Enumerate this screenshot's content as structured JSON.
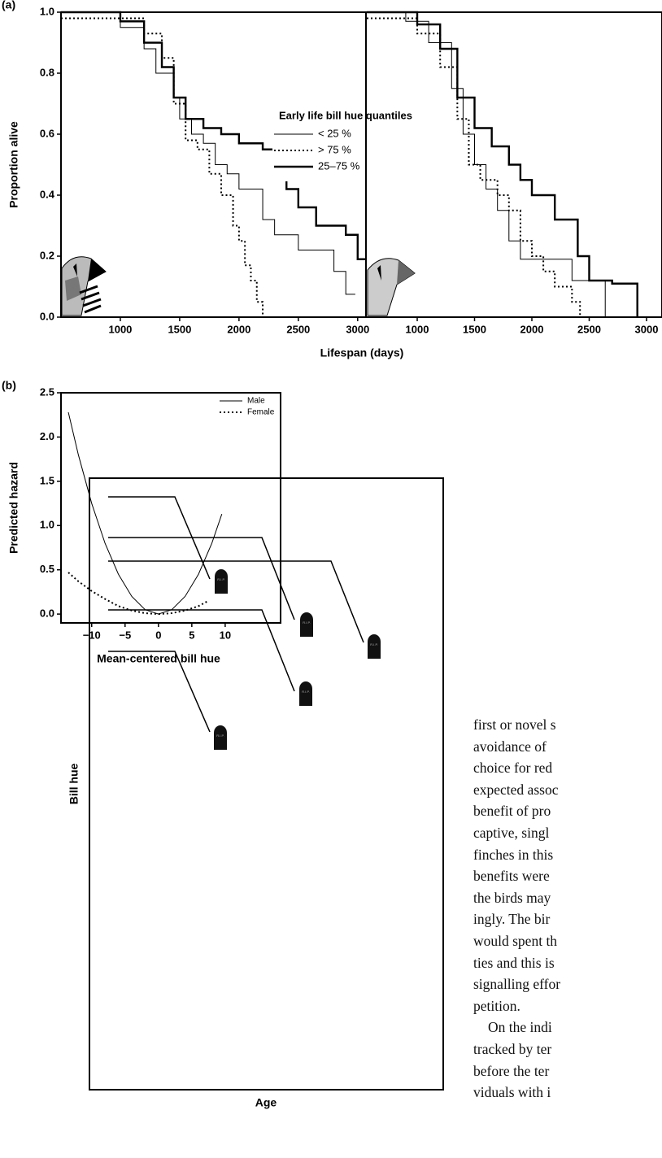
{
  "chart_data": [
    {
      "type": "line",
      "step": true,
      "label": "(a)",
      "ylabel": "Proportion alive",
      "xlabel": "Lifespan (days)",
      "legend_title": "Early life bill hue quantiles",
      "xlim": [
        500,
        3070
      ],
      "ylim": [
        0,
        1
      ],
      "xticks": [
        1000,
        1500,
        2000,
        2500,
        3000
      ],
      "yticks": [
        {
          "value": 0,
          "label": "0.0"
        },
        {
          "value": 0.2,
          "label": "0.2"
        },
        {
          "value": 0.4,
          "label": "0.4"
        },
        {
          "value": 0.6,
          "label": "0.6"
        },
        {
          "value": 0.8,
          "label": "0.8"
        },
        {
          "value": 1,
          "label": "1.0"
        }
      ],
      "series": [
        {
          "name": "< 25 %",
          "style": "thin",
          "color": "#000000",
          "x": [
            500,
            1000,
            1200,
            1300,
            1450,
            1500,
            1600,
            1700,
            1800,
            1900,
            2000,
            2200,
            2300,
            2500,
            2800,
            2900,
            2980
          ],
          "values": [
            1.0,
            0.95,
            0.88,
            0.8,
            0.72,
            0.65,
            0.6,
            0.57,
            0.5,
            0.47,
            0.42,
            0.32,
            0.27,
            0.22,
            0.15,
            0.075,
            0.075
          ]
        },
        {
          "name": "> 75 %",
          "style": "dotted",
          "color": "#000000",
          "x": [
            500,
            1200,
            1350,
            1450,
            1550,
            1650,
            1750,
            1850,
            1950,
            2000,
            2050,
            2100,
            2150,
            2200
          ],
          "values": [
            0.98,
            0.93,
            0.85,
            0.7,
            0.58,
            0.55,
            0.47,
            0.4,
            0.3,
            0.25,
            0.17,
            0.12,
            0.05,
            0.0
          ]
        },
        {
          "name": "25–75 %",
          "style": "thick",
          "color": "#000000",
          "x": [
            500,
            1000,
            1200,
            1350,
            1450,
            1550,
            1700,
            1850,
            2000,
            2200,
            2350,
            2400,
            2500,
            2650,
            2900,
            3000,
            3070
          ],
          "values": [
            1.0,
            0.97,
            0.9,
            0.82,
            0.72,
            0.65,
            0.62,
            0.6,
            0.57,
            0.55,
            0.5,
            0.42,
            0.36,
            0.3,
            0.27,
            0.19,
            0.19
          ]
        }
      ]
    },
    {
      "type": "line",
      "step": true,
      "xlim": [
        553,
        3135
      ],
      "ylim": [
        0,
        1
      ],
      "xticks": [
        1000,
        1500,
        2000,
        2500,
        3000
      ],
      "series": [
        {
          "style": "thin",
          "color": "#000000",
          "x": [
            560,
            900,
            1100,
            1300,
            1400,
            1500,
            1600,
            1700,
            1800,
            1900,
            2350,
            2450,
            2640
          ],
          "values": [
            1.0,
            0.97,
            0.9,
            0.75,
            0.6,
            0.5,
            0.42,
            0.35,
            0.25,
            0.19,
            0.12,
            0.12,
            0.0
          ]
        },
        {
          "style": "dotted",
          "color": "#000000",
          "x": [
            560,
            1000,
            1200,
            1350,
            1450,
            1550,
            1700,
            1800,
            1900,
            2000,
            2100,
            2200,
            2350,
            2420
          ],
          "values": [
            0.98,
            0.93,
            0.82,
            0.65,
            0.5,
            0.45,
            0.4,
            0.35,
            0.25,
            0.2,
            0.15,
            0.1,
            0.05,
            0.0
          ]
        },
        {
          "style": "thick",
          "color": "#000000",
          "x": [
            560,
            1000,
            1200,
            1350,
            1500,
            1650,
            1800,
            1900,
            2000,
            2200,
            2400,
            2500,
            2700,
            2920
          ],
          "values": [
            1.0,
            0.96,
            0.88,
            0.72,
            0.62,
            0.56,
            0.5,
            0.45,
            0.4,
            0.32,
            0.2,
            0.12,
            0.11,
            0.0
          ]
        }
      ]
    },
    {
      "type": "line",
      "label": "(b)",
      "ylabel": "Predicted hazard",
      "xlabel": "Mean-centered bill hue",
      "xlim": [
        -14.6,
        18.3
      ],
      "ylim": [
        -0.1,
        2.5
      ],
      "xticks": [
        {
          "value": -10,
          "label": "−10"
        },
        {
          "value": -5,
          "label": "−5"
        },
        0,
        5,
        10
      ],
      "yticks": [
        {
          "value": 0,
          "label": "0.0"
        },
        {
          "value": 0.5,
          "label": "0.5"
        },
        {
          "value": 1,
          "label": "1.0"
        },
        {
          "value": 1.5,
          "label": "1.5"
        },
        {
          "value": 2,
          "label": "2.0"
        },
        {
          "value": 2.5,
          "label": "2.5"
        }
      ],
      "series": [
        {
          "name": "Male",
          "style": "thin",
          "color": "#000000",
          "x": [
            -13.5,
            -12,
            -10,
            -8,
            -6,
            -4,
            -2,
            0,
            2,
            4,
            6,
            8,
            9.5
          ],
          "values": [
            2.28,
            1.8,
            1.25,
            0.8,
            0.45,
            0.2,
            0.05,
            0,
            0.05,
            0.2,
            0.45,
            0.8,
            1.13
          ]
        },
        {
          "name": "Female",
          "style": "dotted",
          "color": "#000000",
          "x": [
            -13.5,
            -12,
            -10,
            -8,
            -6,
            -4,
            -2,
            0,
            2,
            4,
            6,
            7.5
          ],
          "values": [
            0.47,
            0.37,
            0.26,
            0.17,
            0.09,
            0.04,
            0.01,
            0,
            0.01,
            0.04,
            0.09,
            0.15
          ]
        }
      ]
    }
  ],
  "diagram": {
    "y_label": "Bill hue",
    "x_label": "Age",
    "tombstone_text": "R.I.P."
  },
  "text": {
    "lines": [
      "first or novel s",
      "avoidance of",
      "choice for red",
      "expected assoc",
      "benefit of pro",
      "captive,  singl",
      "finches in this",
      "benefits were",
      "the birds may",
      "ingly. The bir",
      "would spent th",
      "ties and this is",
      "signalling effor",
      "petition."
    ],
    "lines2": [
      "On the indi",
      "tracked by ter",
      "before the ter",
      "viduals with i"
    ]
  }
}
